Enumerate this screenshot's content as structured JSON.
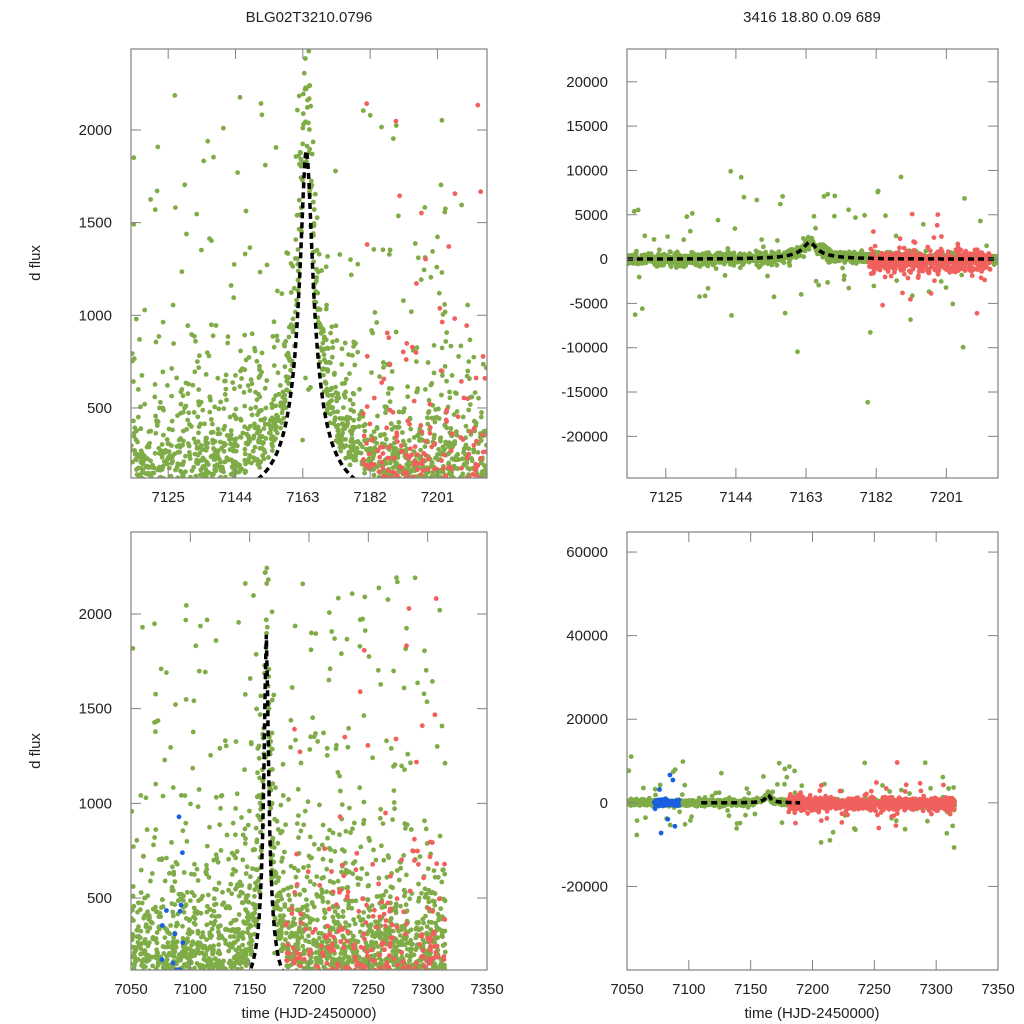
{
  "colors": {
    "ogle": "#7fac47",
    "moa": "#f0605c",
    "kmt": "#1a5fe0",
    "model": "#000000",
    "frame": "#808080"
  },
  "chart_data": [
    {
      "id": "top-left",
      "type": "scatter",
      "title": "BLG02T3210.0796",
      "xlabel": "",
      "ylabel": "d flux",
      "xlim": [
        7114.5,
        7215
      ],
      "ylim": [
        122,
        2437
      ],
      "xticks": [
        7125,
        7144,
        7163,
        7182,
        7201
      ],
      "yticks": [
        500,
        1000,
        1500,
        2000
      ],
      "model": {
        "type": "pspl",
        "t0": 7164,
        "peak": 1890,
        "u0_scale": 0.09,
        "tE": 18.8,
        "base": 0
      },
      "series": [
        {
          "name": "green",
          "color_key": "ogle",
          "x_range": [
            7114.5,
            7215
          ],
          "density": 1500
        },
        {
          "name": "red",
          "color_key": "moa",
          "x_range": [
            7180,
            7215
          ],
          "density": 180
        }
      ]
    },
    {
      "id": "top-right",
      "type": "scatter",
      "title": "3416  18.80  0.09  689",
      "xlabel": "",
      "ylabel": "",
      "xlim": [
        7114.5,
        7215
      ],
      "ylim": [
        -24700,
        23700
      ],
      "xticks": [
        7125,
        7144,
        7163,
        7182,
        7201
      ],
      "yticks": [
        -20000,
        -15000,
        -10000,
        -5000,
        0,
        5000,
        10000,
        15000,
        20000
      ],
      "model": {
        "type": "pspl",
        "t0": 7164,
        "peak": 1890,
        "u0_scale": 0.09,
        "tE": 18.8,
        "base": 0
      },
      "series": [
        {
          "name": "green",
          "color_key": "ogle",
          "x_range": [
            7114.5,
            7215
          ],
          "density": 1400
        },
        {
          "name": "red",
          "color_key": "moa",
          "x_range": [
            7180,
            7213
          ],
          "density": 450
        }
      ]
    },
    {
      "id": "bottom-left",
      "type": "scatter",
      "title": "",
      "xlabel": "time (HJD-2450000)",
      "ylabel": "d flux",
      "xlim": [
        7050,
        7350
      ],
      "ylim": [
        120,
        2433
      ],
      "xticks": [
        7050,
        7100,
        7150,
        7200,
        7250,
        7300,
        7350
      ],
      "yticks": [
        500,
        1000,
        1500,
        2000
      ],
      "model": {
        "type": "pspl",
        "t0": 7164,
        "peak": 1890,
        "u0_scale": 0.09,
        "tE": 18.8,
        "base": 0
      },
      "series": [
        {
          "name": "green",
          "color_key": "ogle",
          "x_range": [
            7050,
            7315
          ],
          "density": 2000
        },
        {
          "name": "red",
          "color_key": "moa",
          "x_range": [
            7180,
            7315
          ],
          "density": 260
        },
        {
          "name": "blue",
          "color_key": "kmt",
          "x_range": [
            7075,
            7095
          ],
          "density": 14
        }
      ]
    },
    {
      "id": "bottom-right",
      "type": "scatter",
      "title": "",
      "xlabel": "time (HJD-2450000)",
      "ylabel": "",
      "xlim": [
        7050,
        7350
      ],
      "ylim": [
        -40000,
        64800
      ],
      "xticks": [
        7050,
        7100,
        7150,
        7200,
        7250,
        7300,
        7350
      ],
      "yticks": [
        -20000,
        0,
        20000,
        40000,
        60000
      ],
      "model": {
        "type": "pspl",
        "t0": 7164,
        "peak": 1890,
        "u0_scale": 0.09,
        "tE": 18.8,
        "base": 0,
        "x_range": [
          7110,
          7190
        ]
      },
      "series": [
        {
          "name": "green",
          "color_key": "ogle",
          "x_range": [
            7050,
            7315
          ],
          "density": 1800
        },
        {
          "name": "red",
          "color_key": "moa",
          "x_range": [
            7180,
            7315
          ],
          "density": 900
        },
        {
          "name": "blue",
          "color_key": "kmt",
          "x_range": [
            7072,
            7092
          ],
          "density": 120
        }
      ]
    }
  ]
}
